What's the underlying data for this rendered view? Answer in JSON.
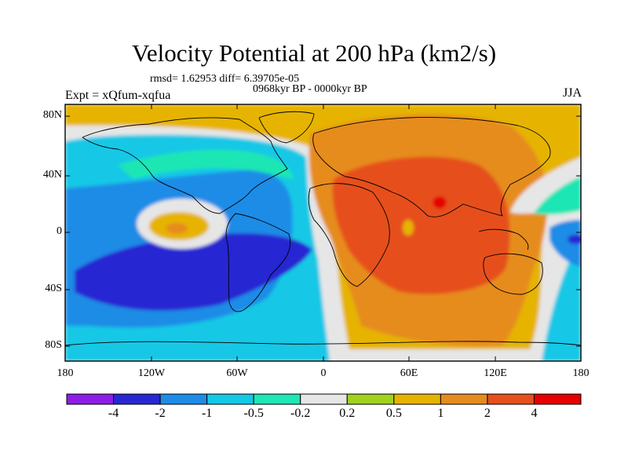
{
  "title": "Velocity Potential at 200 hPa (km2/s)",
  "stats": "rmsd= 1.62953 diff= 6.39705e-05",
  "period": "0968kyr BP - 0000kyr BP",
  "experiment": "Expt = xQfum-xqfua",
  "season": "JJA",
  "axes": {
    "lat_labels": [
      "80N",
      "40N",
      "0",
      "40S",
      "80S"
    ],
    "lon_labels": [
      "180",
      "120W",
      "60W",
      "0",
      "60E",
      "120E",
      "180"
    ]
  },
  "colorbar": {
    "labels": [
      "-4",
      "-2",
      "-1",
      "-0.5",
      "-0.2",
      "0.2",
      "0.5",
      "1",
      "2",
      "4"
    ],
    "colors": [
      "#8c1ee6",
      "#2828d2",
      "#1e8ce6",
      "#14c8e6",
      "#1ee6b4",
      "#e6e6e6",
      "#a0d21e",
      "#e6b400",
      "#e68c1e",
      "#e6501e",
      "#e60000"
    ]
  },
  "map": {
    "projection": "cylindrical-equidistant",
    "lon_range": [
      -180,
      180
    ],
    "lat_range": [
      -90,
      90
    ],
    "background_color": "#14c8e6"
  }
}
